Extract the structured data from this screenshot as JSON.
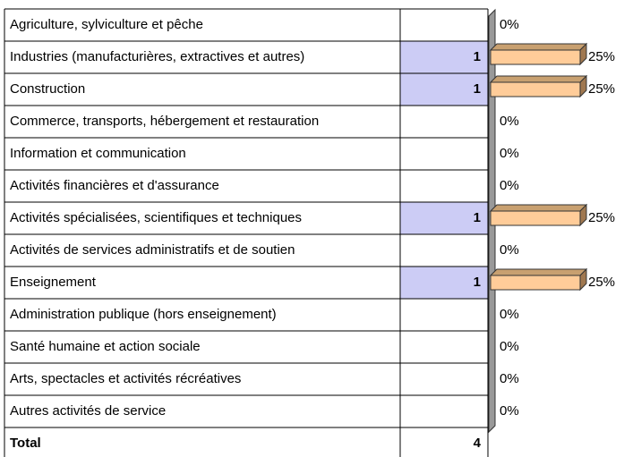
{
  "table": {
    "rows": [
      {
        "label": "Agriculture, sylviculture et pêche",
        "percent": 0,
        "percent_label": "0%"
      },
      {
        "label": "Industries (manufacturières, extractives et autres)",
        "count": 1,
        "percent": 25,
        "percent_label": "25%"
      },
      {
        "label": "Construction",
        "count": 1,
        "percent": 25,
        "percent_label": "25%"
      },
      {
        "label": "Commerce, transports, hébergement et restauration",
        "percent": 0,
        "percent_label": "0%"
      },
      {
        "label": "Information et communication",
        "percent": 0,
        "percent_label": "0%"
      },
      {
        "label": "Activités financières et d'assurance",
        "percent": 0,
        "percent_label": "0%"
      },
      {
        "label": "Activités spécialisées, scientifiques et techniques",
        "count": 1,
        "percent": 25,
        "percent_label": "25%"
      },
      {
        "label": "Activités de services administratifs et de soutien",
        "percent": 0,
        "percent_label": "0%"
      },
      {
        "label": "Enseignement",
        "count": 1,
        "percent": 25,
        "percent_label": "25%"
      },
      {
        "label": "Administration publique (hors enseignement)",
        "percent": 0,
        "percent_label": "0%"
      },
      {
        "label": "Santé humaine et action sociale",
        "percent": 0,
        "percent_label": "0%"
      },
      {
        "label": "Arts, spectacles et activités récréatives",
        "percent": 0,
        "percent_label": "0%"
      },
      {
        "label": "Autres activités de service",
        "percent": 0,
        "percent_label": "0%"
      }
    ],
    "total": {
      "label": "Total",
      "count": 4
    }
  }
}
